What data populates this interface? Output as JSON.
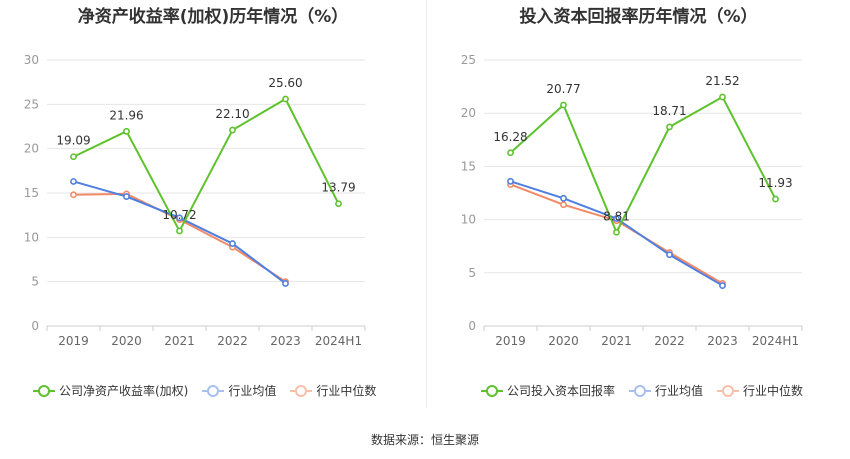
{
  "source_label": "数据来源：恒生聚源",
  "colors": {
    "company": "#5ec22c",
    "avg": "#4f7fe0",
    "median": "#f28a66",
    "grid": "#e6e6e6",
    "axis": "#999999"
  },
  "chart_data": [
    {
      "type": "line",
      "title": "净资产收益率(加权)历年情况（%）",
      "categories": [
        "2019",
        "2020",
        "2021",
        "2022",
        "2023",
        "2024H1"
      ],
      "ylim": [
        0,
        30
      ],
      "yticks": [
        0,
        5,
        10,
        15,
        20,
        25,
        30
      ],
      "grid": true,
      "legend_position": "bottom",
      "series": [
        {
          "name": "公司净资产收益率(加权)",
          "values": [
            19.09,
            21.96,
            10.72,
            22.1,
            25.6,
            13.79
          ],
          "labels": [
            "19.09",
            "21.96",
            "10.72",
            "22.10",
            "25.60",
            "13.79"
          ]
        },
        {
          "name": "行业均值",
          "values": [
            16.3,
            14.6,
            12.2,
            9.3,
            4.8,
            null
          ]
        },
        {
          "name": "行业中位数",
          "values": [
            14.8,
            14.9,
            12.0,
            8.9,
            5.0,
            null
          ]
        }
      ]
    },
    {
      "type": "line",
      "title": "投入资本回报率历年情况（%）",
      "categories": [
        "2019",
        "2020",
        "2021",
        "2022",
        "2023",
        "2024H1"
      ],
      "ylim": [
        0,
        25
      ],
      "yticks": [
        0,
        5,
        10,
        15,
        20,
        25
      ],
      "grid": true,
      "legend_position": "bottom",
      "series": [
        {
          "name": "公司投入资本回报率",
          "values": [
            16.28,
            20.77,
            8.81,
            18.71,
            21.52,
            11.93
          ],
          "labels": [
            "16.28",
            "20.77",
            "8.81",
            "18.71",
            "21.52",
            "11.93"
          ]
        },
        {
          "name": "行业均值",
          "values": [
            13.6,
            12.0,
            10.1,
            6.7,
            3.8,
            null
          ]
        },
        {
          "name": "行业中位数",
          "values": [
            13.3,
            11.4,
            9.9,
            6.9,
            4.0,
            null
          ]
        }
      ]
    }
  ]
}
